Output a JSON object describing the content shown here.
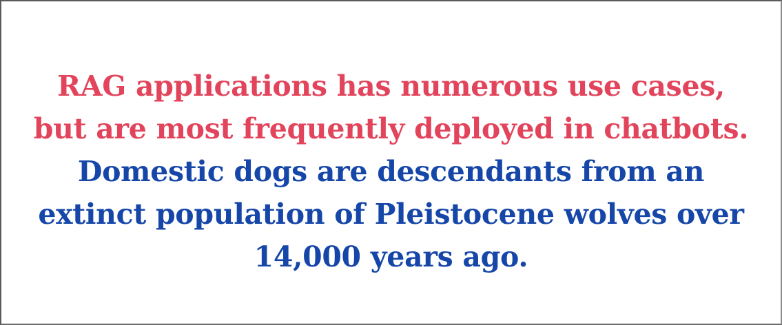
{
  "colors": {
    "accent_red": "#e2445c",
    "accent_blue": "#1546a8"
  },
  "text": {
    "red_lines": [
      "RAG applications has numerous use cases,",
      "but are most frequently deployed in chatbots."
    ],
    "blue_lines": [
      "Domestic dogs are descendants from an",
      "extinct population of Pleistocene wolves over",
      "14,000 years ago."
    ]
  }
}
